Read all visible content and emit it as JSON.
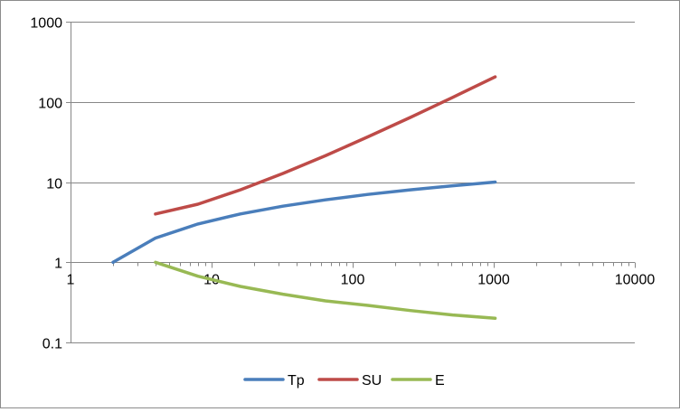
{
  "chart_data": {
    "type": "line",
    "title": "",
    "xlabel": "",
    "ylabel": "",
    "x_scale": "log",
    "y_scale": "log",
    "xlim": [
      1,
      10000
    ],
    "ylim": [
      0.1,
      1000
    ],
    "x_ticks": [
      1,
      10,
      100,
      1000,
      10000
    ],
    "x_tick_labels": [
      "1",
      "10",
      "100",
      "1000",
      "10000"
    ],
    "y_ticks": [
      0.1,
      1,
      10,
      100,
      1000
    ],
    "y_tick_labels": [
      "0.1",
      "1",
      "10",
      "100",
      "1000"
    ],
    "grid": "horizontal major",
    "legend_position": "bottom",
    "series": [
      {
        "name": "Tp",
        "color": "#4a7ebb",
        "points": [
          [
            2,
            1
          ],
          [
            4,
            2
          ],
          [
            8,
            3
          ],
          [
            16,
            4
          ],
          [
            32,
            5
          ],
          [
            64,
            6
          ],
          [
            128,
            7
          ],
          [
            256,
            8
          ],
          [
            512,
            9
          ],
          [
            1024,
            10
          ]
        ]
      },
      {
        "name": "SU",
        "color": "#be4b48",
        "points": [
          [
            4,
            4
          ],
          [
            8,
            5.3
          ],
          [
            16,
            8
          ],
          [
            32,
            12.8
          ],
          [
            64,
            21.3
          ],
          [
            128,
            36.6
          ],
          [
            256,
            64
          ],
          [
            512,
            113.8
          ],
          [
            1024,
            204.8
          ]
        ]
      },
      {
        "name": "E",
        "color": "#98b954",
        "points": [
          [
            4,
            1
          ],
          [
            8,
            0.67
          ],
          [
            16,
            0.5
          ],
          [
            32,
            0.4
          ],
          [
            64,
            0.33
          ],
          [
            128,
            0.29
          ],
          [
            256,
            0.25
          ],
          [
            512,
            0.22
          ],
          [
            1024,
            0.2
          ]
        ]
      }
    ]
  }
}
